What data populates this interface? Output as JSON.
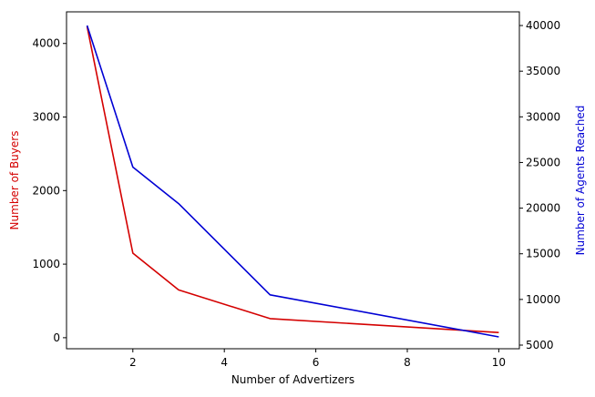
{
  "chart_data": {
    "type": "line",
    "title": "",
    "xlabel": "Number of Advertizers",
    "x": [
      1,
      2,
      3,
      5,
      10
    ],
    "xlim": [
      0.55,
      10.45
    ],
    "xticks": [
      2,
      4,
      6,
      8,
      10
    ],
    "grid": false,
    "series": [
      {
        "name": "",
        "axis": "left",
        "color": "#d40000",
        "y": [
          4230,
          1150,
          650,
          260,
          70
        ]
      },
      {
        "name": "",
        "axis": "right",
        "color": "#0000d4",
        "y": [
          40000,
          24500,
          20500,
          10500,
          5900
        ]
      }
    ],
    "y_left": {
      "label": "Number of Buyers",
      "color": "#d40000",
      "lim": [
        -150,
        4430
      ],
      "ticks": [
        0,
        1000,
        2000,
        3000,
        4000
      ]
    },
    "y_right": {
      "label": "Number of Agents Reached",
      "color": "#0000d4",
      "lim": [
        4600,
        41500
      ],
      "ticks": [
        5000,
        10000,
        15000,
        20000,
        25000,
        30000,
        35000,
        40000
      ]
    }
  }
}
